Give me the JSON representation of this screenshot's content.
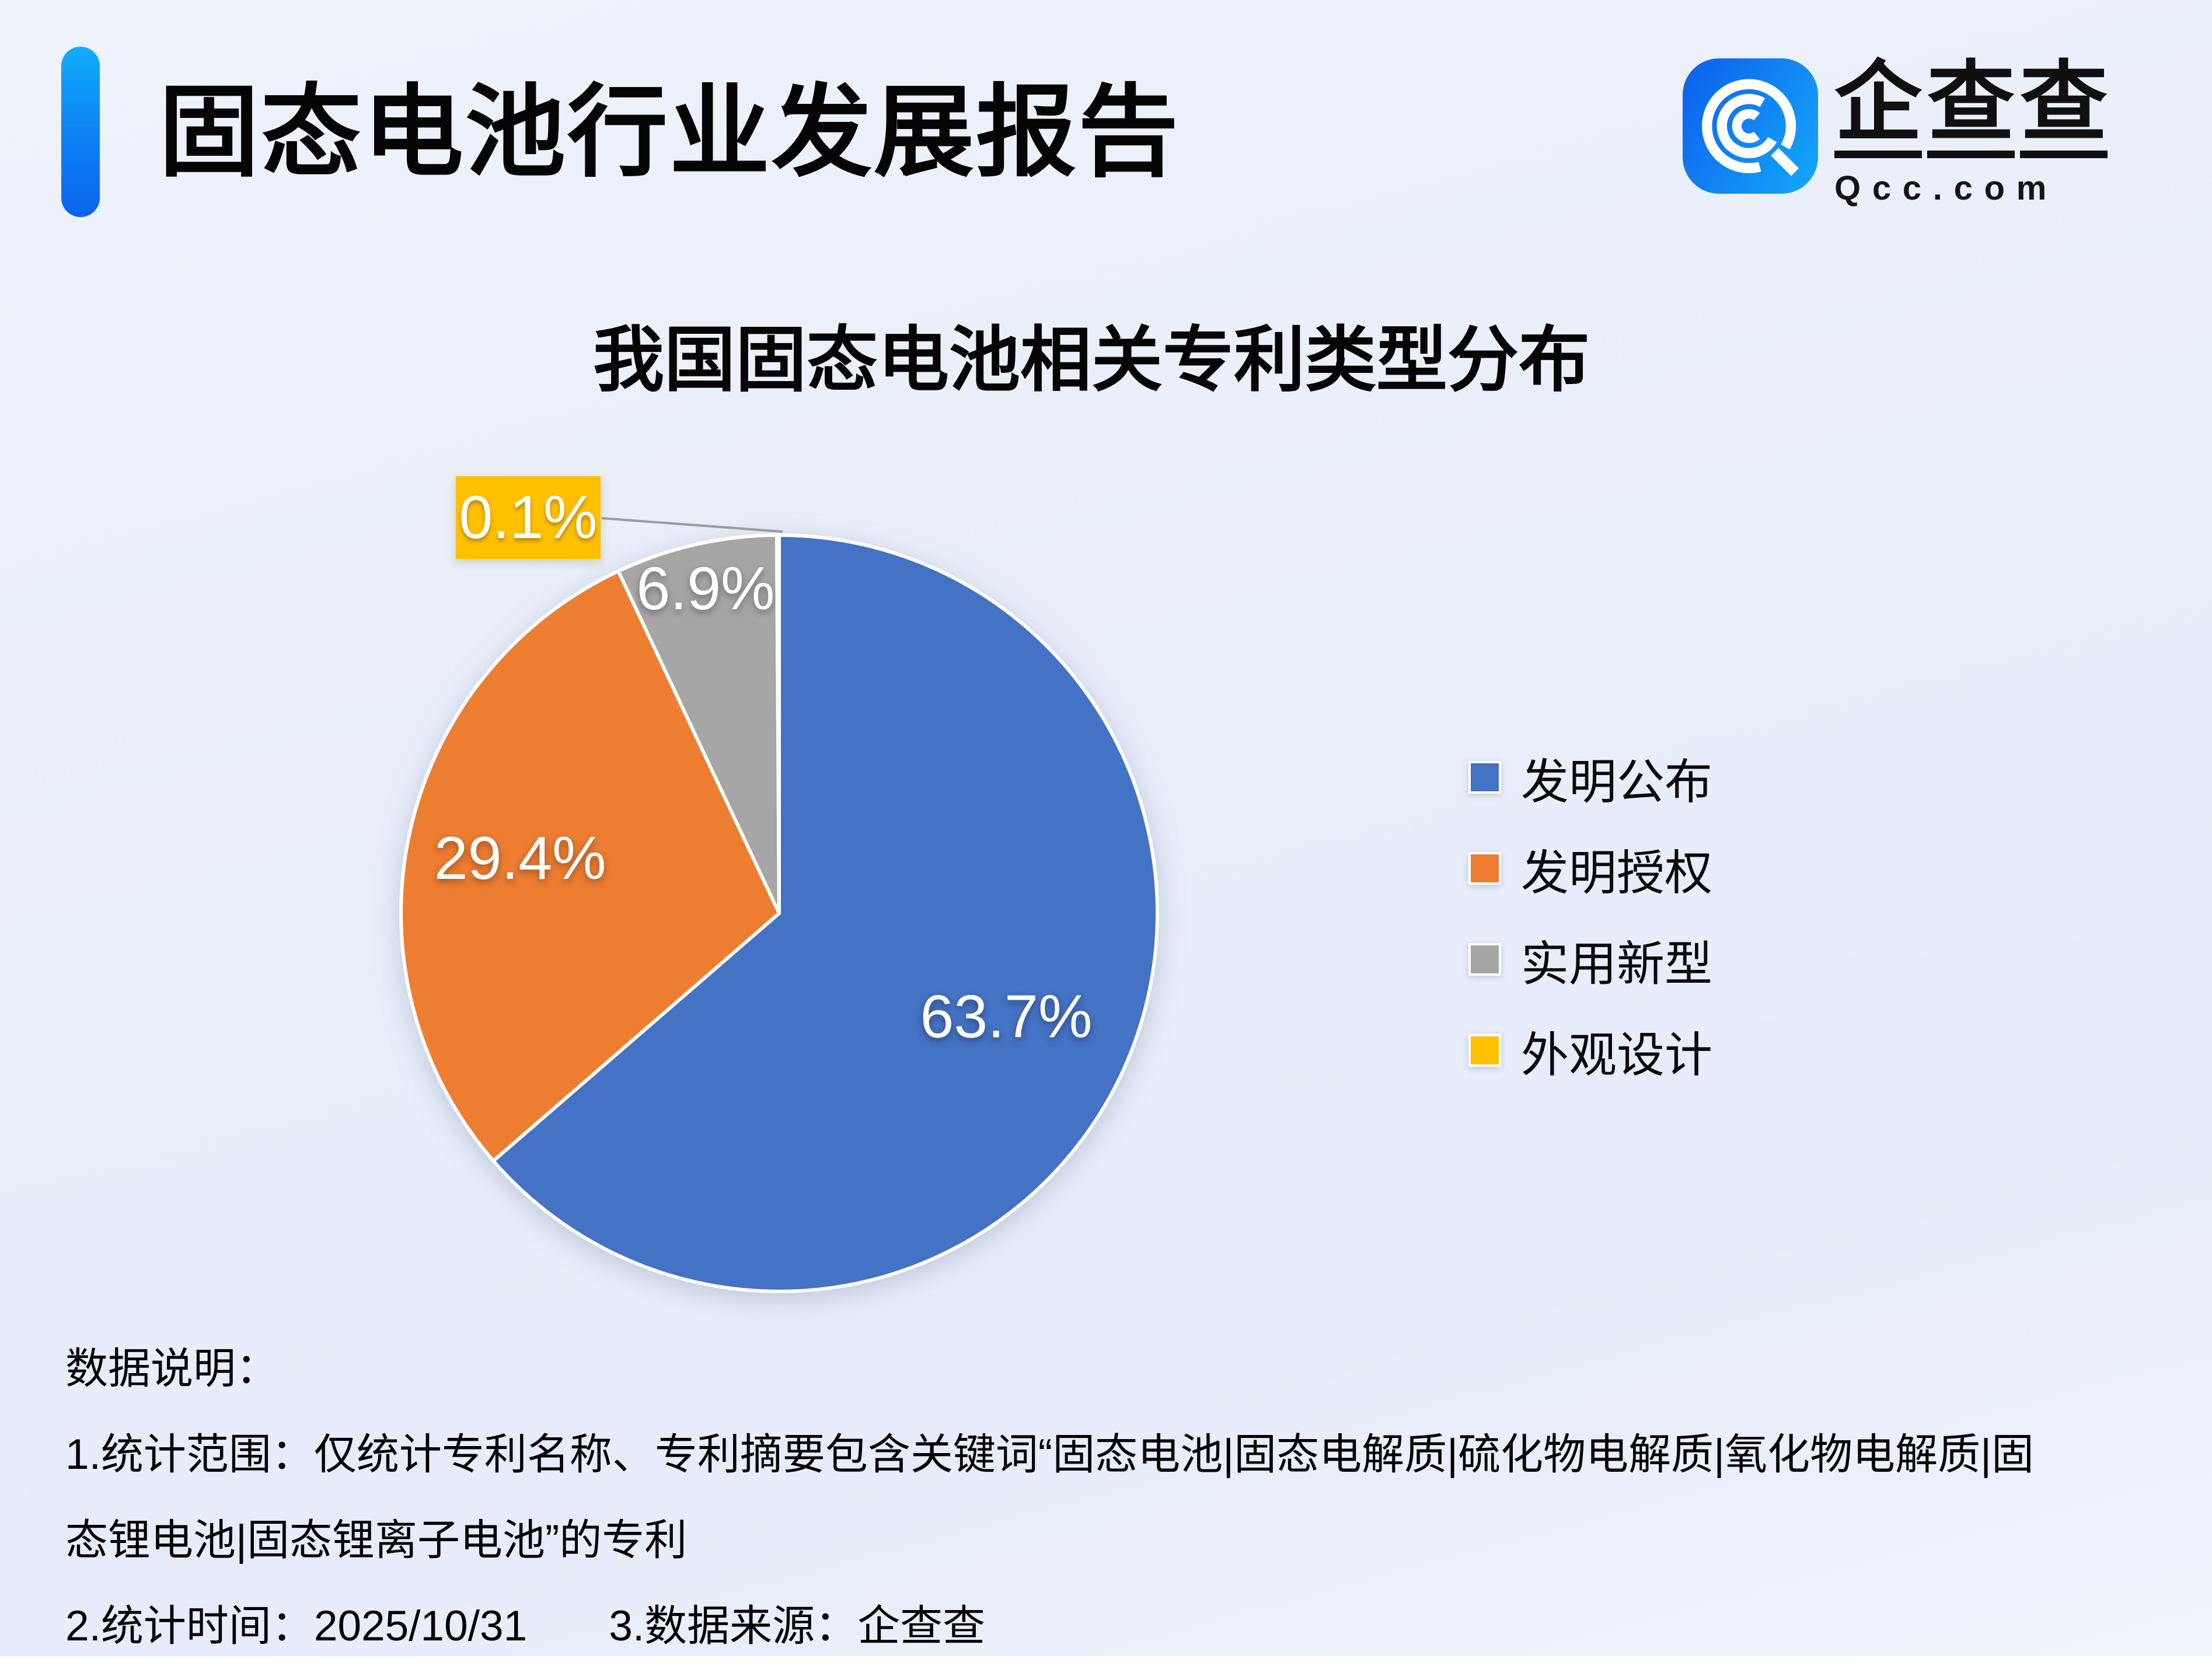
{
  "header": {
    "title": "固态电池行业发展报告"
  },
  "logo": {
    "brand": "企查查",
    "domain": "Qcc.com",
    "icon": "qcc-magnifier-icon",
    "icon_colors": {
      "start": "#0d63ee",
      "end": "#14a4f8"
    }
  },
  "chart_data": {
    "type": "pie",
    "title": "我国固态电池相关专利类型分布",
    "series": [
      {
        "label": "发明公布",
        "value": 63.7,
        "color": "#4472C4"
      },
      {
        "label": "发明授权",
        "value": 29.4,
        "color": "#ED7D31"
      },
      {
        "label": "实用新型",
        "value": 6.9,
        "color": "#A6A6A6"
      },
      {
        "label": "外观设计",
        "value": 0.1,
        "color": "#FFC000"
      }
    ],
    "display_labels": [
      "63.7%",
      "29.4%",
      "6.9%",
      "0.1%"
    ],
    "unit": "%",
    "start_angle": "12-oclock",
    "direction": "clockwise",
    "legend_position": "right",
    "callout": {
      "series_index": 3,
      "text": "0.1%",
      "leader_color": "#9b9b9b"
    }
  },
  "notes": {
    "heading": "数据说明：",
    "line1": "1.统计范围：仅统计专利名称、专利摘要包含关键词“固态电池|固态电解质|硫化物电解质|氧化物电解质|固",
    "line2": "态锂电池|固态锂离子电池”的专利",
    "stat_time": "2.统计时间：2025/10/31",
    "source": "3.数据来源：企查查"
  }
}
